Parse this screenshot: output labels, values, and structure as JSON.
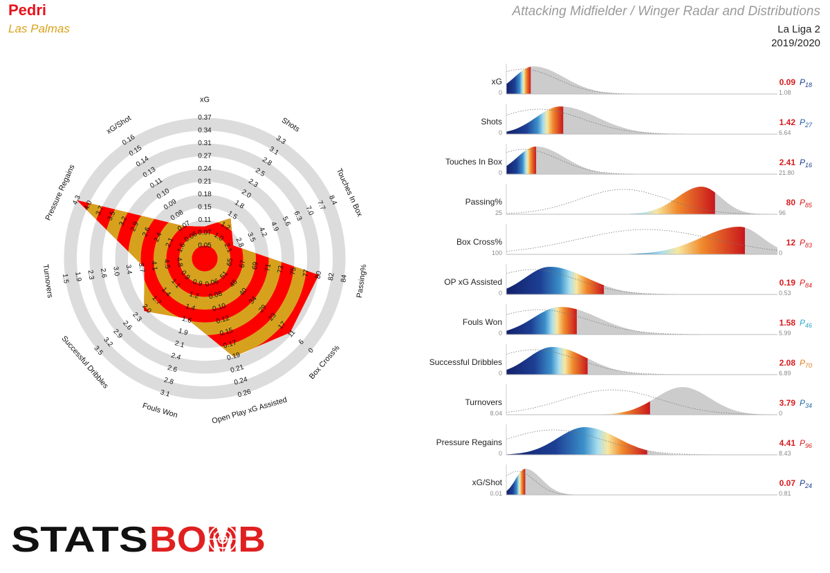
{
  "header": {
    "player": "Pedri",
    "team": "Las Palmas",
    "title": "Attacking Midfielder / Winger Radar and Distributions",
    "league": "La Liga 2",
    "season": "2019/2020"
  },
  "colors": {
    "red": "#ff0000",
    "gold": "#d6a21e",
    "ring_grey": "#dcdcdc",
    "dist_grey": "#cccccc",
    "navy": "#16246b",
    "value_red": "#d7191c",
    "logo_red": "#e02020"
  },
  "logo": {
    "part1": "STATS",
    "part2": "BOMB"
  },
  "chart_data": [
    {
      "type": "radar",
      "axes": [
        {
          "name": "xG",
          "ticks": [
            "0.05",
            "0.07",
            "0.11",
            "0.15",
            "0.18",
            "0.21",
            "0.24",
            "0.27",
            "0.31",
            "0.34",
            "0.37"
          ],
          "value": 0.09
        },
        {
          "name": "Shots",
          "ticks": [
            "1.0",
            "1.2",
            "1.5",
            "1.8",
            "2.0",
            "2.3",
            "2.5",
            "2.8",
            "3.1",
            "3.3"
          ],
          "value": 1.42
        },
        {
          "name": "Touches In Box",
          "ticks": [
            "2.1",
            "2.8",
            "3.5",
            "4.2",
            "4.9",
            "5.6",
            "6.3",
            "7.0",
            "7.7",
            "8.4"
          ],
          "value": 2.41
        },
        {
          "name": "Passing%",
          "ticks": [
            "65",
            "67",
            "69",
            "71",
            "73",
            "75",
            "77",
            "80",
            "82",
            "84"
          ],
          "value": 80
        },
        {
          "name": "Box Cross%",
          "ticks": [
            "51",
            "46",
            "40",
            "34",
            "29",
            "23",
            "17",
            "11",
            "6",
            "0"
          ],
          "value": 12
        },
        {
          "name": "Open Play xG Assisted",
          "ticks": [
            "0.06",
            "0.08",
            "0.10",
            "0.12",
            "0.15",
            "0.17",
            "0.19",
            "0.21",
            "0.24",
            "0.26"
          ],
          "value": 0.19
        },
        {
          "name": "Fouls Won",
          "ticks": [
            "0.9",
            "1.2",
            "1.4",
            "1.6",
            "1.9",
            "2.1",
            "2.4",
            "2.6",
            "2.8",
            "3.1"
          ],
          "value": 1.58
        },
        {
          "name": "Successful Dribbles",
          "ticks": [
            "0.9",
            "1.1",
            "1.4",
            "1.7",
            "2.0",
            "2.3",
            "2.6",
            "2.9",
            "3.2",
            "3.5"
          ],
          "value": 2.08
        },
        {
          "name": "Turnovers",
          "ticks": [
            "4.8",
            "4.5",
            "4.1",
            "3.7",
            "3.4",
            "3.0",
            "2.6",
            "2.3",
            "1.9",
            "1.5"
          ],
          "value": 3.79
        },
        {
          "name": "Pressure Regains",
          "ticks": [
            "1.6",
            "2.1",
            "2.4",
            "2.6",
            "2.9",
            "3.2",
            "3.5",
            "3.7",
            "4.0",
            "4.3"
          ],
          "value": 4.41
        },
        {
          "name": "xG/Shot",
          "ticks": [
            "0.06",
            "0.07",
            "0.08",
            "0.09",
            "0.10",
            "0.11",
            "0.13",
            "0.14",
            "0.15",
            "0.16"
          ],
          "value": 0.07
        }
      ]
    },
    {
      "type": "area",
      "distributions": [
        {
          "name": "xG",
          "min": "0",
          "max": "1.08",
          "value": "0.09",
          "percentile": "18",
          "pct_color": "#1a3a8f",
          "fill_end": 0.09
        },
        {
          "name": "Shots",
          "min": "0",
          "max": "6.64",
          "value": "1.42",
          "percentile": "27",
          "pct_color": "#1f5aa6",
          "fill_end": 0.21
        },
        {
          "name": "Touches In Box",
          "min": "0",
          "max": "21.80",
          "value": "2.41",
          "percentile": "16",
          "pct_color": "#1a3a8f",
          "fill_end": 0.11
        },
        {
          "name": "Passing%",
          "min": "25",
          "max": "96",
          "value": "80",
          "percentile": "85",
          "pct_color": "#d7191c",
          "fill_end": 0.77
        },
        {
          "name": "Box Cross%",
          "min": "100",
          "max": "0",
          "value": "12",
          "percentile": "83",
          "pct_color": "#d7191c",
          "fill_end": 0.88
        },
        {
          "name": "OP xG Assisted",
          "min": "0",
          "max": "0.53",
          "value": "0.19",
          "percentile": "84",
          "pct_color": "#d7191c",
          "fill_end": 0.36
        },
        {
          "name": "Fouls Won",
          "min": "0",
          "max": "5.99",
          "value": "1.58",
          "percentile": "46",
          "pct_color": "#2aa8c9",
          "fill_end": 0.26
        },
        {
          "name": "Successful Dribbles",
          "min": "0",
          "max": "6.89",
          "value": "2.08",
          "percentile": "70",
          "pct_color": "#e07b20",
          "fill_end": 0.3
        },
        {
          "name": "Turnovers",
          "min": "8.04",
          "max": "0",
          "value": "3.79",
          "percentile": "34",
          "pct_color": "#1f6aa6",
          "fill_end": 0.53
        },
        {
          "name": "Pressure Regains",
          "min": "0",
          "max": "8.43",
          "value": "4.41",
          "percentile": "96",
          "pct_color": "#d7191c",
          "fill_end": 0.52
        },
        {
          "name": "xG/Shot",
          "min": "0.01",
          "max": "0.81",
          "value": "0.07",
          "percentile": "24",
          "pct_color": "#1a3a8f",
          "fill_end": 0.07
        }
      ]
    }
  ]
}
